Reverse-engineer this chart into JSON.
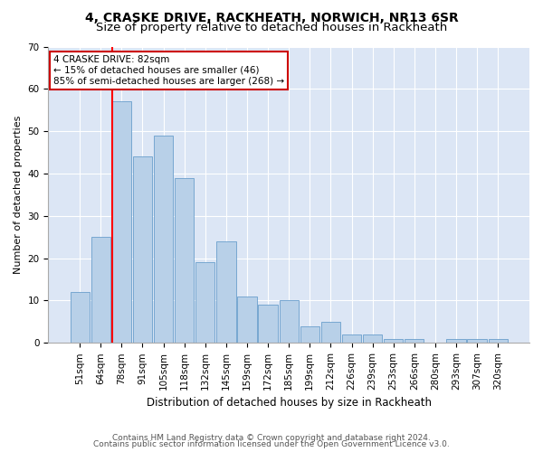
{
  "title": "4, CRASKE DRIVE, RACKHEATH, NORWICH, NR13 6SR",
  "subtitle": "Size of property relative to detached houses in Rackheath",
  "xlabel": "Distribution of detached houses by size in Rackheath",
  "ylabel": "Number of detached properties",
  "categories": [
    "51sqm",
    "64sqm",
    "78sqm",
    "91sqm",
    "105sqm",
    "118sqm",
    "132sqm",
    "145sqm",
    "159sqm",
    "172sqm",
    "185sqm",
    "199sqm",
    "212sqm",
    "226sqm",
    "239sqm",
    "253sqm",
    "266sqm",
    "280sqm",
    "293sqm",
    "307sqm",
    "320sqm"
  ],
  "values": [
    12,
    25,
    57,
    44,
    49,
    39,
    19,
    24,
    11,
    9,
    10,
    4,
    5,
    2,
    2,
    1,
    1,
    0,
    1,
    1,
    1
  ],
  "bar_color": "#b8d0e8",
  "bar_edge_color": "#6a9fcc",
  "red_line_index": 2,
  "annotation_text": "4 CRASKE DRIVE: 82sqm\n← 15% of detached houses are smaller (46)\n85% of semi-detached houses are larger (268) →",
  "annotation_box_color": "#ffffff",
  "annotation_box_edge": "#cc0000",
  "ylim": [
    0,
    70
  ],
  "yticks": [
    0,
    10,
    20,
    30,
    40,
    50,
    60,
    70
  ],
  "background_color": "#dce6f5",
  "footer1": "Contains HM Land Registry data © Crown copyright and database right 2024.",
  "footer2": "Contains public sector information licensed under the Open Government Licence v3.0.",
  "title_fontsize": 10,
  "subtitle_fontsize": 9.5,
  "xlabel_fontsize": 8.5,
  "ylabel_fontsize": 8,
  "tick_fontsize": 7.5,
  "annotation_fontsize": 7.5,
  "footer_fontsize": 6.5
}
